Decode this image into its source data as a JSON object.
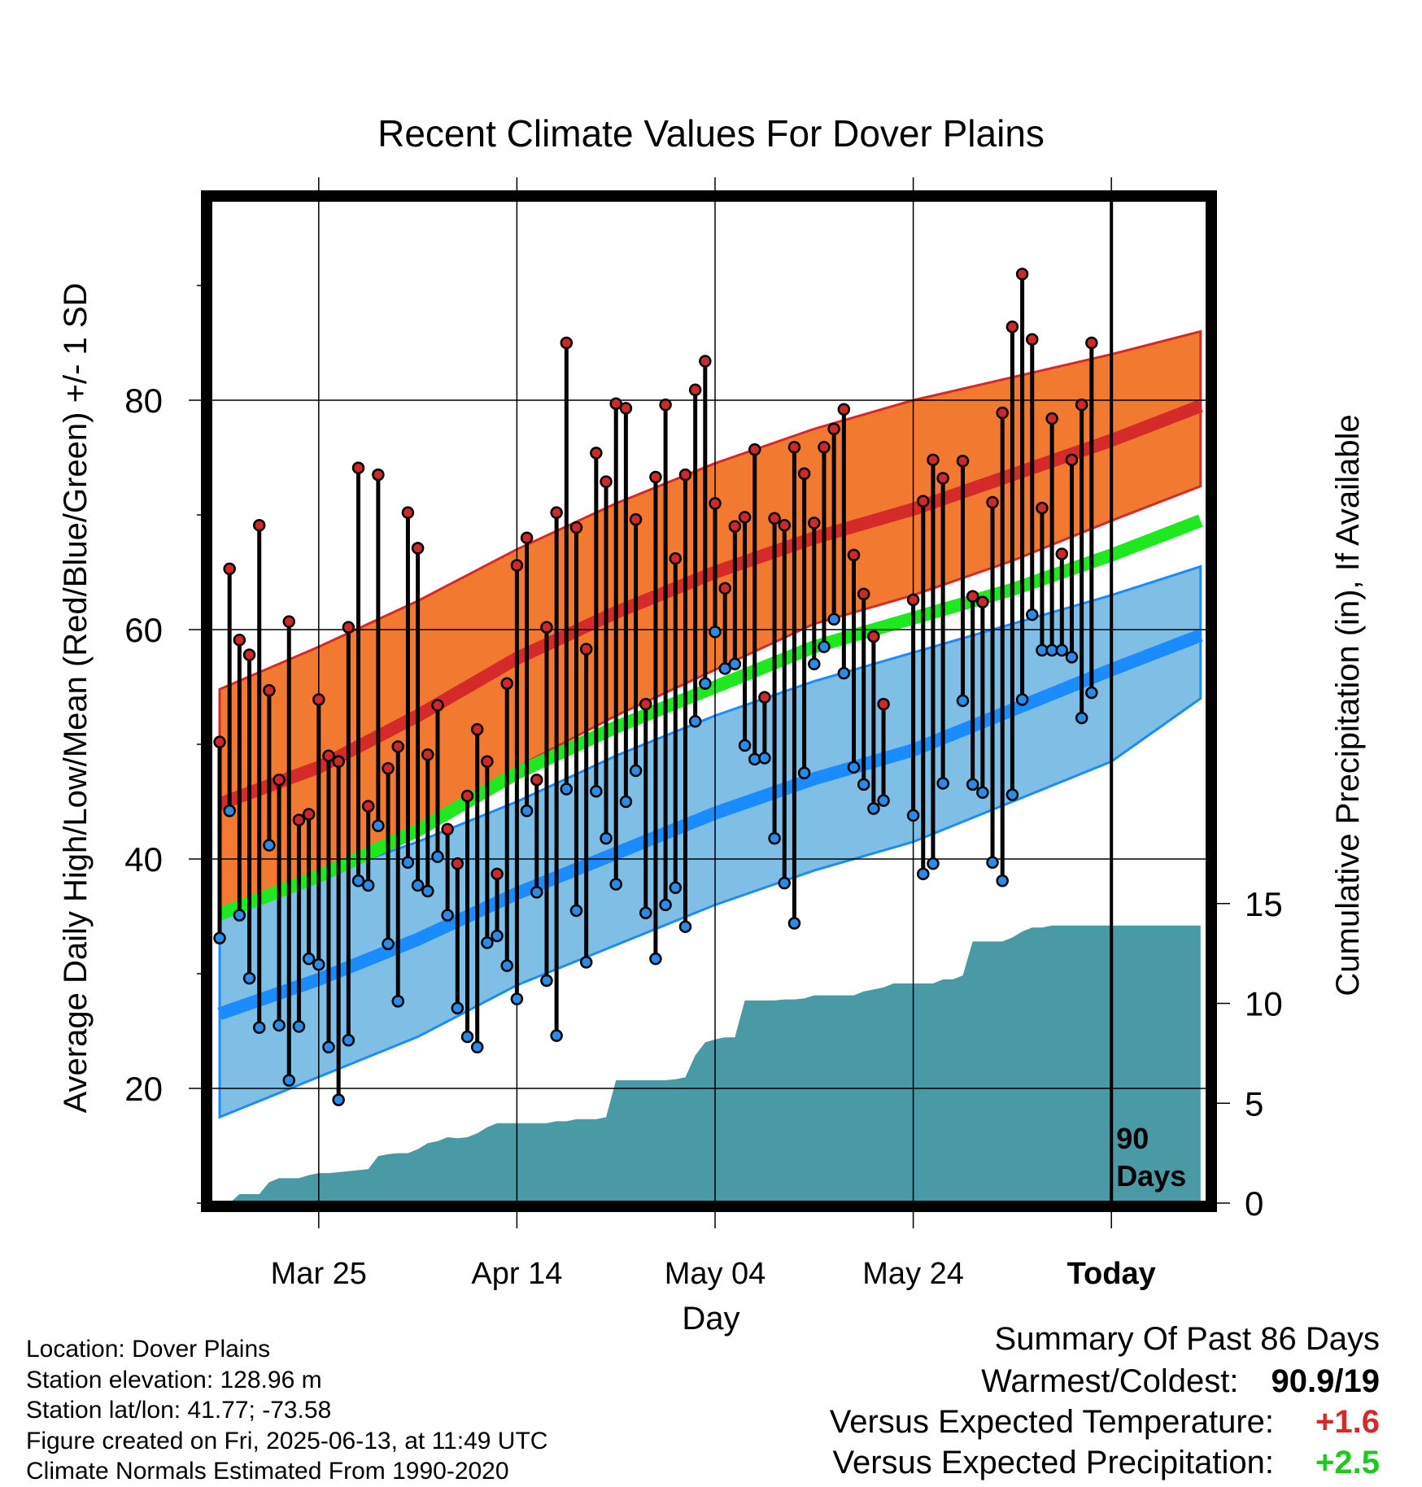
{
  "colors": {
    "high_band": "#f27a30",
    "high_mean": "#d42a2a",
    "low_band": "#7fbfe6",
    "low_mean": "#1a8cff",
    "mean_line": "#1ee81e",
    "precip_fill": "#4a9aa5",
    "high_dot": "#cc2a2a",
    "low_dot": "#2a8ce6",
    "warm_value": "#d42a2a",
    "precip_value": "#1ec81e"
  },
  "chart_data": {
    "type": "line",
    "title": "Recent Climate Values For Dover Plains",
    "xlabel": "Day",
    "ylabel_left": "Average Daily High/Low/Mean (Red/Blue/Green) +/- 1 SD",
    "ylabel_right": "Cumulative Precipitation (in), If Available",
    "x_range_day_offset": [
      -90,
      9
    ],
    "y_left_range": [
      10,
      100
    ],
    "y_right_range": [
      0,
      45
    ],
    "x_ticks": [
      {
        "day": -80,
        "label": "Mar 25"
      },
      {
        "day": -60,
        "label": "Apr 14"
      },
      {
        "day": -40,
        "label": "May 04"
      },
      {
        "day": -20,
        "label": "May 24"
      },
      {
        "day": 0,
        "label": "Today"
      }
    ],
    "y_left_ticks": [
      20,
      40,
      60,
      80
    ],
    "y_left_minor_ticks": [
      10,
      30,
      50,
      70,
      90
    ],
    "y_right_ticks": [
      0,
      5,
      10,
      15
    ],
    "today_label": "90\nDays",
    "normals": {
      "day": [
        -90,
        -80,
        -70,
        -60,
        -50,
        -40,
        -30,
        -20,
        -10,
        0,
        9
      ],
      "high_mean": [
        44.8,
        48,
        52.5,
        57.5,
        61.5,
        65,
        68,
        70.5,
        73.5,
        76.5,
        79.5
      ],
      "high_upper": [
        54.8,
        58.5,
        62.5,
        67,
        71,
        74.5,
        77.5,
        80,
        82,
        84,
        86
      ],
      "high_lower": [
        35.5,
        38,
        42,
        48,
        52.5,
        56.5,
        60.5,
        63,
        66,
        69.5,
        72.5
      ],
      "mean": [
        35.2,
        38.5,
        42.5,
        47.5,
        51.5,
        55,
        58.5,
        61,
        63.5,
        66.5,
        69.5
      ],
      "low_mean": [
        26.5,
        29.5,
        33,
        37,
        40.5,
        44,
        47,
        49.5,
        53,
        56.5,
        59.5
      ],
      "low_upper": [
        35.5,
        38.5,
        41.5,
        45,
        49,
        52.5,
        55.5,
        58,
        60.5,
        63,
        65.5
      ],
      "low_lower": [
        17.5,
        21,
        24.5,
        29,
        32.5,
        36,
        39,
        41.5,
        45,
        48.5,
        54
      ]
    },
    "series": [
      {
        "name": "Daily High",
        "day": [
          -90,
          -89,
          -88,
          -87,
          -86,
          -85,
          -84,
          -83,
          -82,
          -81,
          -80,
          -79,
          -78,
          -77,
          -76,
          -75,
          -74,
          -73,
          -72,
          -71,
          -70,
          -69,
          -68,
          -67,
          -66,
          -65,
          -64,
          -63,
          -62,
          -61,
          -60,
          -59,
          -58,
          -57,
          -56,
          -55,
          -54,
          -53,
          -52,
          -51,
          -50,
          -49,
          -48,
          -47,
          -46,
          -45,
          -44,
          -43,
          -42,
          -41,
          -40,
          -39,
          -38,
          -37,
          -36,
          -35,
          -34,
          -33,
          -32,
          -31,
          -30,
          -29,
          -28,
          -27,
          -26,
          -25,
          -24,
          -23,
          -22,
          -21,
          -20,
          -19,
          -18,
          -17,
          -16,
          -15,
          -14,
          -13,
          -12,
          -11,
          -10,
          -9,
          -8,
          -7,
          -6,
          -5,
          -4,
          -3,
          -2,
          -1
        ],
        "values": [
          50.2,
          65.3,
          59.1,
          57.8,
          69.1,
          54.7,
          46.9,
          60.7,
          43.4,
          43.9,
          53.9,
          49,
          48.5,
          60.2,
          74.1,
          44.6,
          73.5,
          47.9,
          49.8,
          70.2,
          67.1,
          49.1,
          53.4,
          42.6,
          39.6,
          45.5,
          51.3,
          48.5,
          38.7,
          55.3,
          65.6,
          68,
          46.9,
          60.2,
          70.2,
          85,
          68.9,
          58.3,
          75.4,
          72.9,
          79.7,
          79.3,
          69.6,
          53.5,
          73.3,
          79.6,
          66.2,
          73.5,
          80.9,
          83.4,
          71,
          63.6,
          69,
          69.8,
          75.7,
          54.1,
          69.7,
          69.1,
          75.9,
          73.6,
          69.3,
          75.9,
          77.5,
          79.2,
          66.5,
          63.1,
          59.4,
          53.5,
          null,
          null,
          62.6,
          71.2,
          74.8,
          73.2,
          null,
          74.7,
          62.9,
          62.4,
          71.1,
          78.9,
          86.4,
          91,
          85.3,
          70.6,
          78.4,
          66.6,
          74.8,
          79.6,
          85,
          null
        ]
      },
      {
        "name": "Daily Low",
        "day": [
          -90,
          -89,
          -88,
          -87,
          -86,
          -85,
          -84,
          -83,
          -82,
          -81,
          -80,
          -79,
          -78,
          -77,
          -76,
          -75,
          -74,
          -73,
          -72,
          -71,
          -70,
          -69,
          -68,
          -67,
          -66,
          -65,
          -64,
          -63,
          -62,
          -61,
          -60,
          -59,
          -58,
          -57,
          -56,
          -55,
          -54,
          -53,
          -52,
          -51,
          -50,
          -49,
          -48,
          -47,
          -46,
          -45,
          -44,
          -43,
          -42,
          -41,
          -40,
          -39,
          -38,
          -37,
          -36,
          -35,
          -34,
          -33,
          -32,
          -31,
          -30,
          -29,
          -28,
          -27,
          -26,
          -25,
          -24,
          -23,
          -22,
          -21,
          -20,
          -19,
          -18,
          -17,
          -16,
          -15,
          -14,
          -13,
          -12,
          -11,
          -10,
          -9,
          -8,
          -7,
          -6,
          -5,
          -4,
          -3,
          -2,
          -1
        ],
        "values": [
          33.1,
          44.2,
          35.1,
          29.6,
          25.3,
          41.2,
          25.5,
          20.7,
          25.4,
          31.3,
          30.8,
          23.6,
          19,
          24.2,
          38.1,
          37.7,
          42.9,
          32.6,
          27.6,
          39.7,
          37.7,
          37.2,
          40.2,
          35.1,
          27,
          24.5,
          23.6,
          32.7,
          33.3,
          30.7,
          27.8,
          44.2,
          37.1,
          29.4,
          24.6,
          46.1,
          35.5,
          31,
          45.9,
          41.8,
          37.8,
          45,
          47.7,
          35.3,
          31.3,
          36,
          37.5,
          34.1,
          52,
          55.3,
          59.8,
          56.6,
          57,
          49.9,
          48.7,
          48.8,
          41.8,
          37.9,
          34.4,
          47.5,
          57,
          58.5,
          60.9,
          56.2,
          48,
          46.5,
          44.4,
          45.1,
          null,
          null,
          43.8,
          38.7,
          39.6,
          46.6,
          null,
          53.8,
          46.5,
          45.8,
          39.7,
          38.1,
          45.6,
          53.9,
          61.3,
          58.2,
          58.2,
          58.2,
          57.6,
          52.3,
          54.5,
          null
        ]
      },
      {
        "name": "Cumulative Precipitation",
        "day": [
          -90,
          -89,
          -88,
          -87,
          -86,
          -85,
          -84,
          -83,
          -82,
          -81,
          -80,
          -79,
          -78,
          -77,
          -76,
          -75,
          -74,
          -73,
          -72,
          -71,
          -70,
          -69,
          -68,
          -67,
          -66,
          -65,
          -64,
          -63,
          -62,
          -61,
          -60,
          -59,
          -58,
          -57,
          -56,
          -55,
          -54,
          -53,
          -52,
          -51,
          -50,
          -49,
          -48,
          -47,
          -46,
          -45,
          -44,
          -43,
          -42,
          -41,
          -40,
          -39,
          -38,
          -37,
          -36,
          -35,
          -34,
          -33,
          -32,
          -31,
          -30,
          -29,
          -28,
          -27,
          -26,
          -25,
          -24,
          -23,
          -22,
          -21,
          -20,
          -19,
          -18,
          -17,
          -16,
          -15,
          -14,
          -13,
          -12,
          -11,
          -10,
          -9,
          -8,
          -7,
          -6,
          -5,
          -4,
          -3,
          -2,
          -1,
          0,
          9
        ],
        "values": [
          0,
          0,
          0.45,
          0.45,
          0.45,
          1.05,
          1.25,
          1.25,
          1.25,
          1.4,
          1.5,
          1.5,
          1.55,
          1.6,
          1.65,
          1.7,
          2.35,
          2.45,
          2.5,
          2.5,
          2.7,
          3,
          3.1,
          3.3,
          3.25,
          3.3,
          3.5,
          3.8,
          4,
          4,
          4,
          4,
          4,
          4,
          4.1,
          4.1,
          4.2,
          4.2,
          4.2,
          4.3,
          6.15,
          6.15,
          6.15,
          6.15,
          6.15,
          6.15,
          6.2,
          6.3,
          7.4,
          8.05,
          8.2,
          8.3,
          8.3,
          10.15,
          10.15,
          10.15,
          10.15,
          10.2,
          10.2,
          10.25,
          10.4,
          10.4,
          10.4,
          10.4,
          10.4,
          10.6,
          10.7,
          10.8,
          11,
          11,
          11,
          11,
          11,
          11.2,
          11.2,
          11.4,
          13.1,
          13.1,
          13.1,
          13.1,
          13.3,
          13.6,
          13.8,
          13.8,
          13.9,
          13.9,
          13.9,
          13.9,
          13.9,
          13.9,
          13.9,
          13.9
        ]
      }
    ]
  },
  "footer": {
    "location": "Location: Dover Plains",
    "elevation": "Station elevation: 128.96 m",
    "latlon": "Station lat/lon: 41.77; -73.58",
    "created": "Figure created on Fri, 2025-06-13, at 11:49 UTC",
    "normals": "Climate Normals Estimated From 1990-2020"
  },
  "summary": {
    "title": "Summary Of Past 86 Days",
    "warmest_label": "Warmest/Coldest:",
    "warmest_value": "90.9/19",
    "temp_label": "Versus Expected Temperature:",
    "temp_value": "+1.6",
    "precip_label": "Versus Expected Precipitation:",
    "precip_value": "+2.5"
  }
}
